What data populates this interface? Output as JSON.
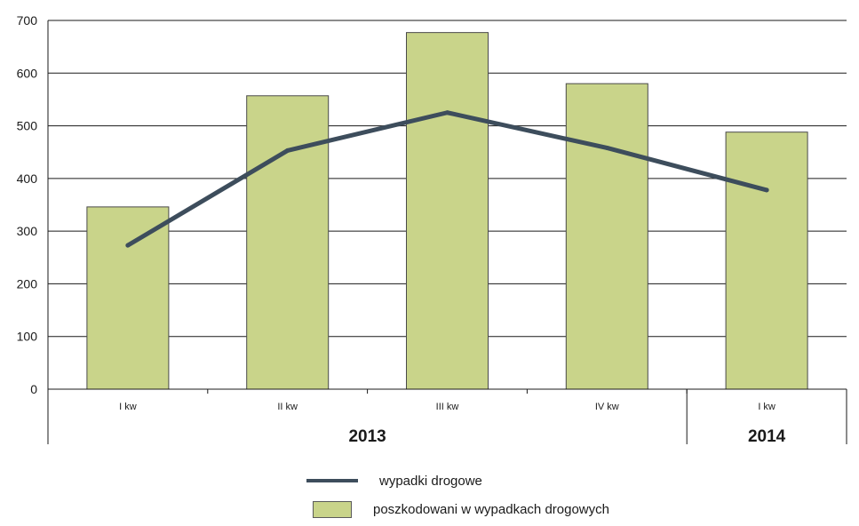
{
  "chart_data": {
    "type": "bar",
    "categories": [
      "I kw",
      "II kw",
      "III kw",
      "IV kw",
      "I kw"
    ],
    "year_groups": [
      {
        "label": "2013",
        "span": 4
      },
      {
        "label": "2014",
        "span": 1
      }
    ],
    "series": [
      {
        "name": "poszkodowani w wypadkach drogowych",
        "type": "bar",
        "color": "#c9d48a",
        "values": [
          346,
          557,
          677,
          580,
          488
        ]
      },
      {
        "name": "wypadki drogowe",
        "type": "line",
        "color": "#3d4d5c",
        "values": [
          273,
          453,
          525,
          458,
          378
        ]
      }
    ],
    "ylim": [
      0,
      700
    ],
    "yticks": [
      0,
      100,
      200,
      300,
      400,
      500,
      600,
      700
    ],
    "grid": true,
    "legend_position": "bottom"
  }
}
